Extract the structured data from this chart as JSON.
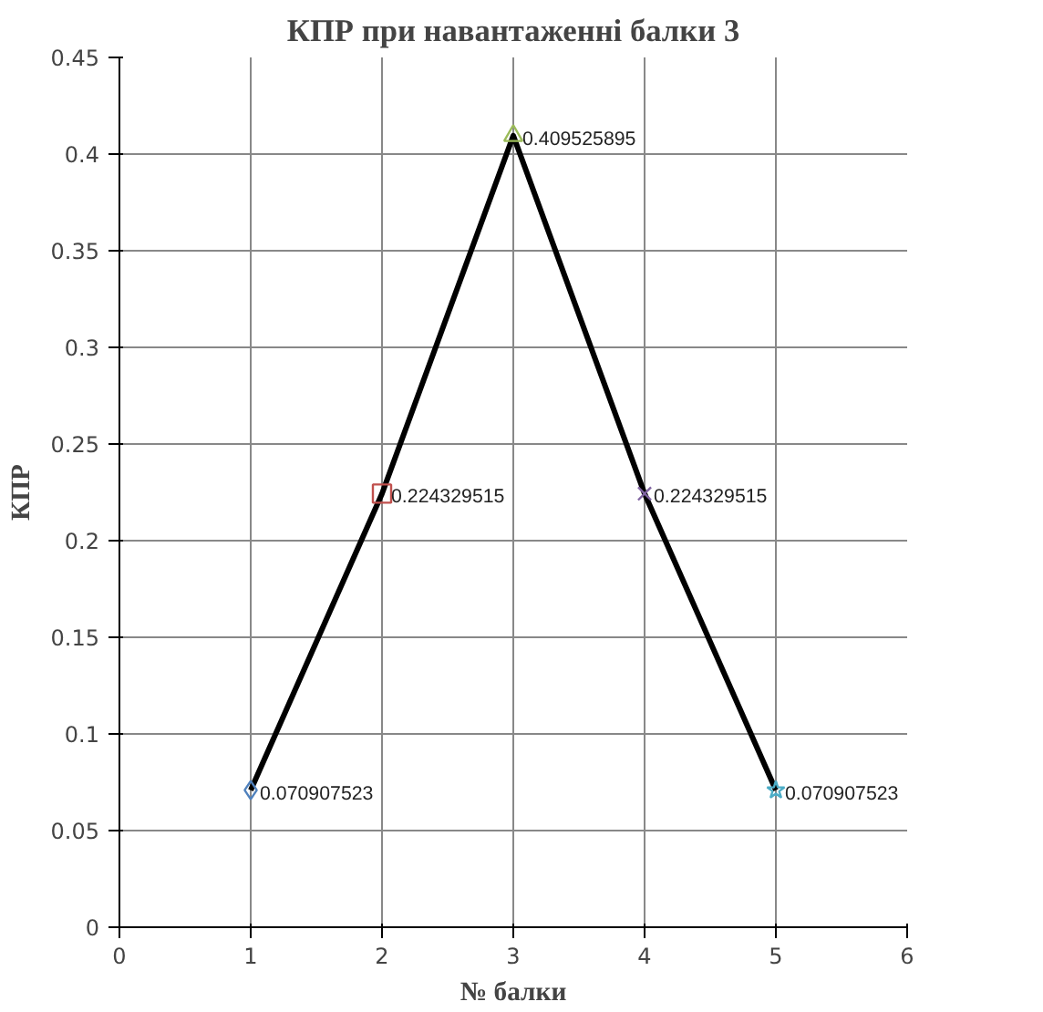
{
  "chart_data": {
    "type": "line",
    "title": "КПР при навантаженні балки 3",
    "xlabel": "№ балки",
    "ylabel": "КПР",
    "xlim": [
      0,
      6
    ],
    "xticks": [
      0,
      1,
      2,
      3,
      4,
      5,
      6
    ],
    "ylim": [
      0,
      0.45
    ],
    "yticks": [
      0,
      0.05,
      0.1,
      0.15,
      0.2,
      0.25,
      0.3,
      0.35,
      0.4,
      0.45
    ],
    "grid": true,
    "legend": false,
    "series": [
      {
        "color": "#000000",
        "marker": "none",
        "line_style": "solid",
        "x": [
          1,
          2,
          3,
          4,
          5
        ],
        "values": [
          0.070907523,
          0.224329515,
          0.409525895,
          0.224329515,
          0.070907523
        ]
      },
      {
        "type": "scatter",
        "color": "#4f81bd",
        "marker": "diamond",
        "x": [
          1
        ],
        "values": [
          0.070907523
        ],
        "value_labels": [
          "0.070907523"
        ]
      },
      {
        "type": "scatter",
        "color": "#c0504d",
        "marker": "square",
        "x": [
          2
        ],
        "values": [
          0.224329515
        ],
        "value_labels": [
          "0.224329515"
        ]
      },
      {
        "type": "scatter",
        "color": "#9bbb59",
        "marker": "triangle",
        "x": [
          3
        ],
        "values": [
          0.409525895
        ],
        "value_labels": [
          "0.409525895"
        ]
      },
      {
        "type": "scatter",
        "color": "#8064a2",
        "marker": "cross",
        "x": [
          4
        ],
        "values": [
          0.224329515
        ],
        "value_labels": [
          "0.224329515"
        ]
      },
      {
        "type": "scatter",
        "color": "#4bacc6",
        "marker": "star",
        "x": [
          5
        ],
        "values": [
          0.070907523
        ],
        "value_labels": [
          "0.070907523"
        ]
      }
    ]
  }
}
